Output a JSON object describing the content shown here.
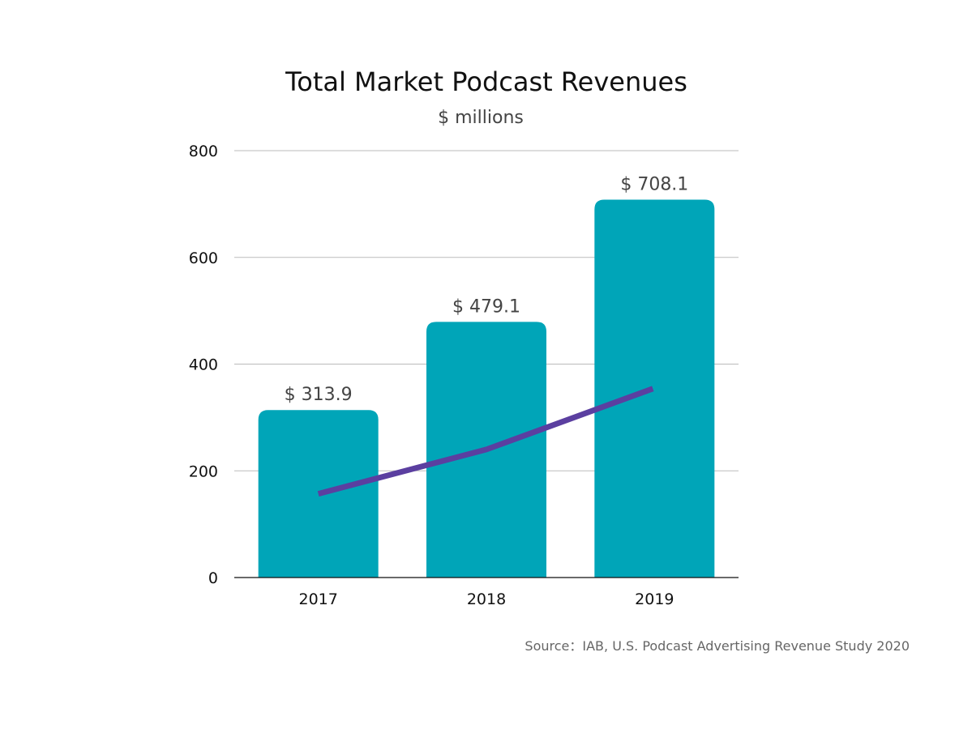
{
  "chart_data": {
    "type": "bar",
    "title": "Total Market Podcast Revenues",
    "subtitle": "$ millions",
    "categories": [
      "2017",
      "2018",
      "2019"
    ],
    "series": [
      {
        "values": [
          313.9,
          479.1,
          708.1
        ],
        "labels": [
          "$ 313.9",
          "$ 479.1",
          "$ 708.1"
        ]
      },
      {
        "type": "line",
        "values": [
          157,
          240,
          354
        ]
      }
    ],
    "y_ticks": [
      "0",
      "200",
      "400",
      "600",
      "800"
    ],
    "ylim": [
      0,
      800
    ],
    "grid": true,
    "source": "Source：IAB, U.S. Podcast Advertising Revenue Study 2020",
    "colors": {
      "bar": "#00A5B8",
      "line": "#5B3FA0",
      "grid": "#BBBBBB",
      "axis": "#111111"
    }
  }
}
